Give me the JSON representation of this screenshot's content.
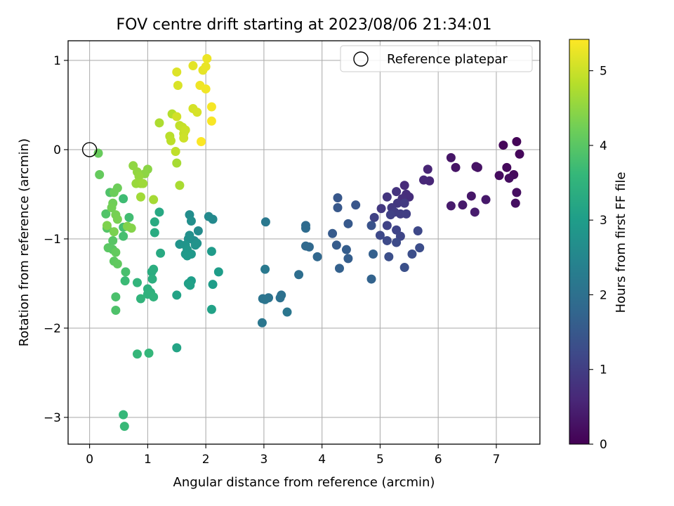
{
  "chart_data": {
    "type": "scatter",
    "title": "FOV centre drift starting at 2023/08/06 21:34:01",
    "xlabel": "Angular distance from reference (arcmin)",
    "ylabel": "Rotation from reference (arcmin)",
    "xlim": [
      -0.37,
      7.75
    ],
    "ylim": [
      -3.3,
      1.22
    ],
    "xticks": [
      0,
      1,
      2,
      3,
      4,
      5,
      6,
      7
    ],
    "yticks": [
      1,
      0,
      -1,
      -2,
      -3
    ],
    "xtick_labels": [
      "0",
      "1",
      "2",
      "3",
      "4",
      "5",
      "6",
      "7"
    ],
    "ytick_labels": [
      "1",
      "0",
      "−1",
      "−2",
      "−3"
    ],
    "grid": true,
    "legend": {
      "position": "top-right",
      "entries": [
        {
          "label": "Reference platepar",
          "marker": "open-circle"
        }
      ]
    },
    "reference_point": {
      "x": 0,
      "y": 0,
      "label": "Reference platepar"
    },
    "colorbar": {
      "label": "Hours from first FF file",
      "min": 0,
      "max": 5.42,
      "ticks": [
        0,
        1,
        2,
        3,
        4,
        5
      ],
      "tick_labels": [
        "0",
        "1",
        "2",
        "3",
        "4",
        "5"
      ],
      "colormap": "viridis",
      "stops": [
        "#440154",
        "#482878",
        "#3e4989",
        "#31688e",
        "#26828e",
        "#1f9e89",
        "#35b779",
        "#6ece58",
        "#b5de2b",
        "#fde725"
      ]
    },
    "points": [
      [
        7.35,
        0.09,
        0.05
      ],
      [
        7.12,
        0.05,
        0.08
      ],
      [
        7.4,
        -0.05,
        0.1
      ],
      [
        7.18,
        -0.2,
        0.12
      ],
      [
        7.3,
        -0.28,
        0.14
      ],
      [
        7.05,
        -0.29,
        0.16
      ],
      [
        7.22,
        -0.32,
        0.18
      ],
      [
        7.35,
        -0.48,
        0.2
      ],
      [
        7.33,
        -0.6,
        0.22
      ],
      [
        6.68,
        -0.2,
        0.26
      ],
      [
        6.65,
        -0.19,
        0.28
      ],
      [
        6.3,
        -0.2,
        0.3
      ],
      [
        6.22,
        -0.09,
        0.32
      ],
      [
        6.57,
        -0.52,
        0.34
      ],
      [
        6.82,
        -0.56,
        0.36
      ],
      [
        6.42,
        -0.62,
        0.38
      ],
      [
        6.22,
        -0.63,
        0.4
      ],
      [
        6.63,
        -0.7,
        0.42
      ],
      [
        5.82,
        -0.22,
        0.55
      ],
      [
        5.85,
        -0.35,
        0.58
      ],
      [
        5.75,
        -0.34,
        0.6
      ],
      [
        5.42,
        -0.4,
        0.65
      ],
      [
        5.5,
        -0.53,
        0.7
      ],
      [
        5.45,
        -0.5,
        0.72
      ],
      [
        5.38,
        -0.55,
        0.75
      ],
      [
        5.28,
        -0.47,
        0.8
      ],
      [
        5.12,
        -0.53,
        0.85
      ],
      [
        5.3,
        -0.6,
        0.88
      ],
      [
        5.02,
        -0.66,
        0.9
      ],
      [
        5.2,
        -0.65,
        0.92
      ],
      [
        5.42,
        -0.6,
        0.95
      ],
      [
        5.25,
        -0.7,
        0.98
      ],
      [
        5.35,
        -0.72,
        1.0
      ],
      [
        5.45,
        -0.72,
        1.02
      ],
      [
        5.18,
        -0.73,
        1.05
      ],
      [
        4.9,
        -0.76,
        1.08
      ],
      [
        5.12,
        -0.85,
        1.1
      ],
      [
        5.28,
        -0.9,
        1.12
      ],
      [
        5.35,
        -0.97,
        1.15
      ],
      [
        5.65,
        -0.91,
        1.18
      ],
      [
        5.0,
        -0.96,
        1.2
      ],
      [
        5.12,
        -1.02,
        1.22
      ],
      [
        5.28,
        -1.04,
        1.25
      ],
      [
        5.68,
        -1.1,
        1.28
      ],
      [
        5.55,
        -1.17,
        1.3
      ],
      [
        5.15,
        -1.2,
        1.32
      ],
      [
        5.42,
        -1.32,
        1.35
      ],
      [
        4.85,
        -0.85,
        1.4
      ],
      [
        4.58,
        -0.62,
        1.45
      ],
      [
        4.27,
        -0.54,
        1.48
      ],
      [
        4.27,
        -0.65,
        1.5
      ],
      [
        4.45,
        -0.83,
        1.52
      ],
      [
        4.18,
        -0.94,
        1.55
      ],
      [
        4.25,
        -1.07,
        1.58
      ],
      [
        4.42,
        -1.12,
        1.6
      ],
      [
        4.45,
        -1.22,
        1.62
      ],
      [
        4.88,
        -1.17,
        1.65
      ],
      [
        4.3,
        -1.33,
        1.68
      ],
      [
        4.85,
        -1.45,
        1.7
      ],
      [
        3.92,
        -1.2,
        1.8
      ],
      [
        3.78,
        -1.09,
        1.82
      ],
      [
        3.72,
        -1.08,
        1.85
      ],
      [
        3.72,
        -0.85,
        1.88
      ],
      [
        3.72,
        -0.88,
        1.9
      ],
      [
        3.6,
        -1.4,
        1.95
      ],
      [
        3.3,
        -1.63,
        2.0
      ],
      [
        3.28,
        -1.66,
        2.02
      ],
      [
        3.08,
        -1.66,
        2.05
      ],
      [
        2.98,
        -1.67,
        2.08
      ],
      [
        3.02,
        -1.68,
        2.1
      ],
      [
        3.4,
        -1.82,
        2.12
      ],
      [
        2.97,
        -1.94,
        2.15
      ],
      [
        3.03,
        -0.81,
        2.18
      ],
      [
        3.02,
        -1.34,
        2.2
      ],
      [
        2.12,
        -0.78,
        2.55
      ],
      [
        2.05,
        -0.75,
        2.58
      ],
      [
        1.87,
        -0.91,
        2.6
      ],
      [
        1.8,
        -1.02,
        2.62
      ],
      [
        1.72,
        -0.73,
        2.65
      ],
      [
        1.75,
        -0.8,
        2.68
      ],
      [
        1.72,
        -0.96,
        2.7
      ],
      [
        1.7,
        -1.0,
        2.72
      ],
      [
        1.85,
        -1.05,
        2.75
      ],
      [
        1.82,
        -1.07,
        2.78
      ],
      [
        1.55,
        -1.06,
        2.8
      ],
      [
        1.65,
        -1.07,
        2.82
      ],
      [
        1.68,
        -1.12,
        2.85
      ],
      [
        1.75,
        -1.17,
        2.88
      ],
      [
        1.65,
        -1.17,
        2.9
      ],
      [
        1.68,
        -1.19,
        2.92
      ],
      [
        2.1,
        -1.14,
        2.95
      ],
      [
        2.22,
        -1.37,
        2.98
      ],
      [
        2.12,
        -1.51,
        3.0
      ],
      [
        1.75,
        -1.47,
        3.02
      ],
      [
        1.7,
        -1.5,
        3.05
      ],
      [
        1.73,
        -1.52,
        3.08
      ],
      [
        2.1,
        -1.79,
        3.1
      ],
      [
        1.5,
        -1.63,
        3.12
      ],
      [
        1.5,
        -2.22,
        3.15
      ],
      [
        1.2,
        -0.7,
        3.25
      ],
      [
        1.22,
        -1.16,
        3.28
      ],
      [
        1.12,
        -0.81,
        3.3
      ],
      [
        1.12,
        -0.93,
        3.32
      ],
      [
        1.07,
        -1.37,
        3.35
      ],
      [
        1.1,
        -1.34,
        3.38
      ],
      [
        1.08,
        -1.45,
        3.4
      ],
      [
        1.0,
        -1.56,
        3.42
      ],
      [
        1.05,
        -1.6,
        3.45
      ],
      [
        1.0,
        -1.62,
        3.48
      ],
      [
        1.1,
        -1.65,
        3.5
      ],
      [
        0.88,
        -1.67,
        3.52
      ],
      [
        0.82,
        -1.49,
        3.55
      ],
      [
        1.02,
        -2.28,
        3.58
      ],
      [
        0.82,
        -2.29,
        3.6
      ],
      [
        0.58,
        -2.97,
        3.62
      ],
      [
        0.6,
        -3.1,
        3.65
      ],
      [
        0.61,
        -1.47,
        3.68
      ],
      [
        0.58,
        -0.55,
        3.72
      ],
      [
        0.68,
        -0.76,
        3.75
      ],
      [
        0.58,
        -0.87,
        3.78
      ],
      [
        0.58,
        -0.97,
        3.8
      ],
      [
        0.62,
        -1.37,
        3.82
      ],
      [
        0.45,
        -1.65,
        3.85
      ],
      [
        0.45,
        -1.8,
        3.88
      ],
      [
        0.35,
        -0.48,
        3.9
      ],
      [
        0.28,
        -0.72,
        3.92
      ],
      [
        0.3,
        -0.88,
        3.95
      ],
      [
        0.4,
        -1.02,
        3.98
      ],
      [
        0.4,
        -1.12,
        4.0
      ],
      [
        0.32,
        -1.1,
        4.02
      ],
      [
        0.42,
        -1.25,
        4.05
      ],
      [
        0.48,
        -1.28,
        4.08
      ],
      [
        0.45,
        -1.15,
        4.1
      ],
      [
        0.17,
        -0.28,
        4.12
      ],
      [
        0.15,
        -0.04,
        4.15
      ],
      [
        0.42,
        -0.48,
        4.18
      ],
      [
        0.48,
        -0.43,
        4.2
      ],
      [
        0.4,
        -0.6,
        4.22
      ],
      [
        0.38,
        -0.65,
        4.25
      ],
      [
        0.45,
        -0.73,
        4.28
      ],
      [
        0.48,
        -0.78,
        4.3
      ],
      [
        0.42,
        -0.92,
        4.32
      ],
      [
        0.3,
        -0.85,
        4.35
      ],
      [
        0.65,
        -0.86,
        4.38
      ],
      [
        0.72,
        -0.88,
        4.4
      ],
      [
        1.0,
        -0.22,
        4.45
      ],
      [
        0.95,
        -0.27,
        4.48
      ],
      [
        0.75,
        -0.18,
        4.5
      ],
      [
        0.82,
        -0.25,
        4.52
      ],
      [
        0.85,
        -0.3,
        4.55
      ],
      [
        0.8,
        -0.38,
        4.58
      ],
      [
        0.88,
        -0.38,
        4.6
      ],
      [
        0.92,
        -0.38,
        4.62
      ],
      [
        0.88,
        -0.53,
        4.65
      ],
      [
        1.1,
        -0.56,
        4.68
      ],
      [
        1.5,
        -0.15,
        4.7
      ],
      [
        1.55,
        -0.4,
        4.72
      ],
      [
        1.2,
        0.3,
        4.75
      ],
      [
        1.42,
        0.4,
        4.82
      ],
      [
        1.38,
        0.15,
        4.85
      ],
      [
        1.4,
        0.1,
        4.88
      ],
      [
        1.48,
        -0.02,
        4.9
      ],
      [
        1.55,
        0.27,
        4.92
      ],
      [
        1.6,
        0.25,
        4.95
      ],
      [
        1.62,
        0.18,
        4.98
      ],
      [
        1.65,
        0.22,
        5.0
      ],
      [
        1.62,
        0.13,
        5.02
      ],
      [
        1.5,
        0.37,
        5.05
      ],
      [
        1.78,
        0.46,
        5.08
      ],
      [
        1.85,
        0.42,
        5.1
      ],
      [
        1.52,
        0.72,
        5.12
      ],
      [
        1.5,
        0.87,
        5.15
      ],
      [
        1.78,
        0.94,
        5.2
      ],
      [
        1.95,
        0.89,
        5.22
      ],
      [
        2.0,
        0.93,
        5.25
      ],
      [
        2.02,
        1.02,
        5.28
      ],
      [
        1.9,
        0.72,
        5.3
      ],
      [
        2.0,
        0.68,
        5.32
      ],
      [
        2.1,
        0.48,
        5.35
      ],
      [
        2.1,
        0.32,
        5.38
      ],
      [
        1.92,
        0.09,
        5.4
      ]
    ]
  }
}
